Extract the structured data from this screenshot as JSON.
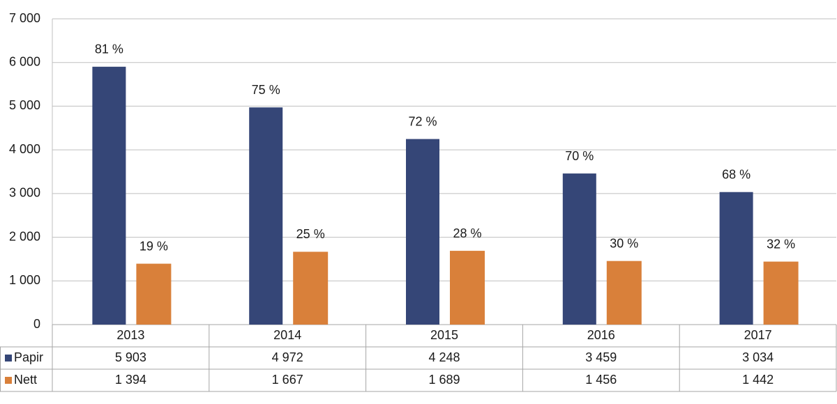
{
  "chart_data": {
    "type": "bar",
    "categories": [
      "2013",
      "2014",
      "2015",
      "2016",
      "2017"
    ],
    "series": [
      {
        "name": "Papir",
        "color": "#354677",
        "values": [
          5903,
          4972,
          4248,
          3459,
          3034
        ],
        "value_labels": [
          "5 903",
          "4 972",
          "4 248",
          "3 459",
          "3 034"
        ],
        "share_labels": [
          "81 %",
          "75 %",
          "72 %",
          "70 %",
          "68 %"
        ]
      },
      {
        "name": "Nett",
        "color": "#d9803a",
        "values": [
          1394,
          1667,
          1689,
          1456,
          1442
        ],
        "value_labels": [
          "1 394",
          "1 667",
          "1 689",
          "1 456",
          "1 442"
        ],
        "share_labels": [
          "19 %",
          "25 %",
          "28 %",
          "30 %",
          "32 %"
        ]
      }
    ],
    "ylim": [
      0,
      7000
    ],
    "yticks": [
      0,
      {
        "value": 1000,
        "label": "1 000"
      },
      {
        "value": 2000,
        "label": "2 000"
      },
      {
        "value": 3000,
        "label": "3 000"
      },
      {
        "value": 4000,
        "label": "4 000"
      },
      {
        "value": 5000,
        "label": "5 000"
      },
      {
        "value": 6000,
        "label": "6 000"
      },
      {
        "value": 7000,
        "label": "7 000"
      }
    ],
    "grid": true
  }
}
